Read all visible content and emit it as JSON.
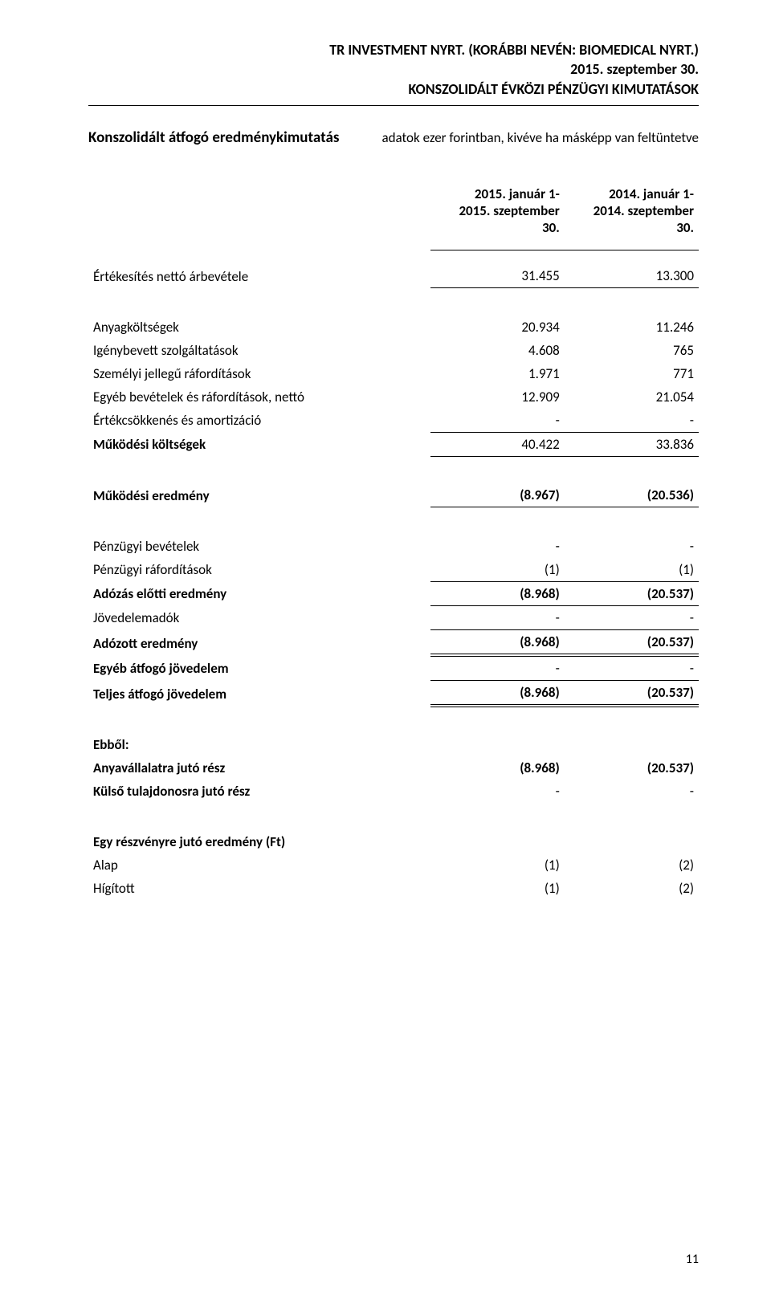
{
  "header": {
    "line1": "TR INVESTMENT NYRT. (KORÁBBI NEVÉN: BIOMEDICAL NYRT.)",
    "line2": "2015. szeptember 30.",
    "line3": "KONSZOLIDÁLT ÉVKÖZI PÉNZÜGYI KIMUTATÁSOK"
  },
  "section_title": "Konszolidált átfogó eredménykimutatás",
  "subnote": "adatok ezer forintban, kivéve ha másképp van feltüntetve",
  "columns": {
    "col1": "2015. január 1-\n2015. szeptember\n30.",
    "col2": "2014. január 1-\n2014. szeptember\n30."
  },
  "rows": {
    "sales_label": "Értékesítés nettó árbevétele",
    "sales_v1": "31.455",
    "sales_v2": "13.300",
    "mat_label": "Anyagköltségek",
    "mat_v1": "20.934",
    "mat_v2": "11.246",
    "serv_label": "Igénybevett szolgáltatások",
    "serv_v1": "4.608",
    "serv_v2": "765",
    "pers_label": "Személyi jellegű ráfordítások",
    "pers_v1": "1.971",
    "pers_v2": "771",
    "other_label": "Egyéb bevételek és ráfordítások, nettó",
    "other_v1": "12.909",
    "other_v2": "21.054",
    "depr_label": "Értékcsökkenés és amortizáció",
    "depr_v1": "-",
    "depr_v2": "-",
    "opex_label": "Működési költségek",
    "opex_v1": "40.422",
    "opex_v2": "33.836",
    "opres_label": "Működési eredmény",
    "opres_v1": "(8.967)",
    "opres_v2": "(20.536)",
    "finin_label": "Pénzügyi bevételek",
    "finin_v1": "-",
    "finin_v2": "-",
    "finex_label": "Pénzügyi ráfordítások",
    "finex_v1": "(1)",
    "finex_v2": "(1)",
    "pbt_label": "Adózás előtti eredmény",
    "pbt_v1": "(8.968)",
    "pbt_v2": "(20.537)",
    "tax_label": "Jövedelemadók",
    "tax_v1": "-",
    "tax_v2": "-",
    "pat_label": "Adózott eredmény",
    "pat_v1": "(8.968)",
    "pat_v2": "(20.537)",
    "oci_label": "Egyéb átfogó jövedelem",
    "oci_v1": "-",
    "oci_v2": "-",
    "tci_label": "Teljes átfogó jövedelem",
    "tci_v1": "(8.968)",
    "tci_v2": "(20.537)",
    "ebbol_label": "Ebből:",
    "parent_label": "Anyavállalatra jutó rész",
    "parent_v1": "(8.968)",
    "parent_v2": "(20.537)",
    "nci_label": "Külső tulajdonosra jutó rész",
    "nci_v1": "-",
    "nci_v2": "-",
    "eps_head": "Egy részvényre jutó eredmény (Ft)",
    "basic_label": "Alap",
    "basic_v1": "(1)",
    "basic_v2": "(2)",
    "diluted_label": "Hígított",
    "diluted_v1": "(1)",
    "diluted_v2": "(2)"
  },
  "page_number": "11",
  "colors": {
    "text": "#000000",
    "background": "#ffffff",
    "rule": "#000000"
  },
  "typography": {
    "base_font_size_pt": 12,
    "header_font_size_pt": 13,
    "font_family": "Calibri"
  }
}
